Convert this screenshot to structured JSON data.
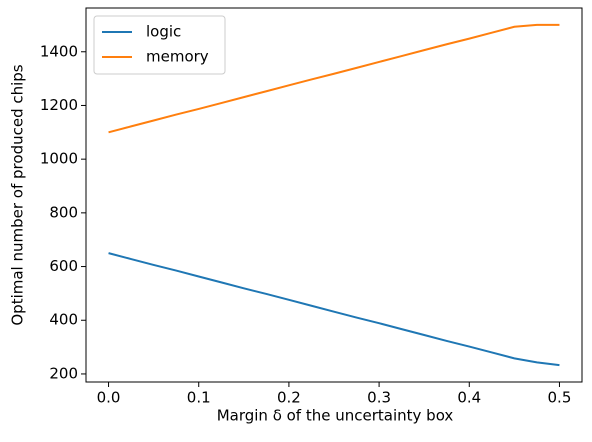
{
  "chart_data": {
    "type": "line",
    "x_label": "Margin δ of the uncertainty box",
    "y_label": "Optimal number of produced chips",
    "x": [
      0,
      0.025,
      0.05,
      0.075,
      0.1,
      0.125,
      0.15,
      0.175,
      0.2,
      0.225,
      0.25,
      0.275,
      0.3,
      0.325,
      0.35,
      0.375,
      0.4,
      0.425,
      0.45,
      0.475,
      0.5
    ],
    "series": [
      {
        "name": "logic",
        "color": "#1f77b4",
        "values": [
          650,
          628,
          606,
          585,
          563,
          541,
          519,
          498,
          476,
          454,
          432,
          410,
          389,
          367,
          345,
          323,
          302,
          280,
          258,
          243,
          233
        ]
      },
      {
        "name": "memory",
        "color": "#ff7f0e",
        "values": [
          1100,
          1122,
          1144,
          1166,
          1187,
          1209,
          1231,
          1253,
          1275,
          1297,
          1318,
          1340,
          1362,
          1384,
          1406,
          1428,
          1449,
          1471,
          1493,
          1500,
          1500
        ]
      }
    ],
    "xlim": [
      -0.025,
      0.525
    ],
    "xticks": [
      {
        "value": 0,
        "label": "0.0"
      },
      0.1,
      0.2,
      0.3,
      0.4,
      0.5
    ],
    "ylim": [
      170,
      1563
    ],
    "yticks": [
      200,
      400,
      600,
      800,
      1000,
      1200,
      1400
    ],
    "legend": "upper left"
  }
}
